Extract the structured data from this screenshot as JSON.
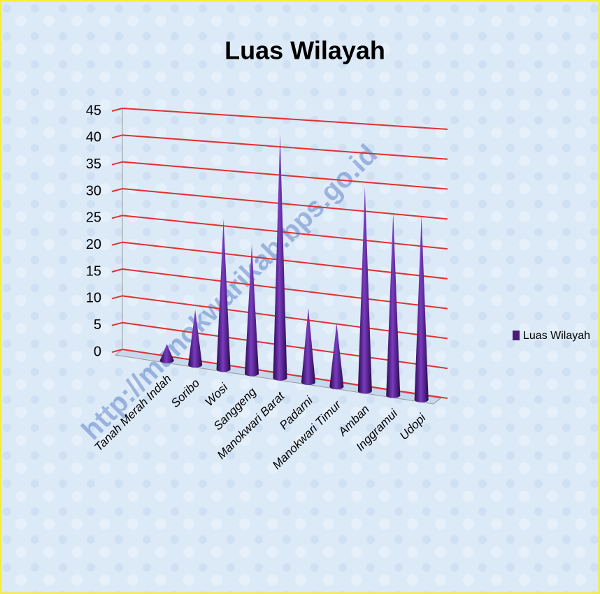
{
  "chart_data": {
    "type": "cone3d",
    "title": "Luas Wilayah",
    "categories": [
      "Tanah Merah Indah",
      "Soribo",
      "Wosi",
      "Sanggeng",
      "Manokwari Barat",
      "Padarni",
      "Manokwari Timur",
      "Amban",
      "Inggramui",
      "Udopi"
    ],
    "series": [
      {
        "name": "Luas Wilayah",
        "color": "#4b1a7a",
        "values": [
          3,
          10,
          27,
          23,
          43,
          13,
          11,
          35,
          31,
          31
        ]
      }
    ],
    "ylim": [
      0,
      45
    ],
    "yticks": [
      0,
      5,
      10,
      15,
      20,
      25,
      30,
      35,
      40,
      45
    ],
    "grid": true,
    "grid_color": "#e03030",
    "legend": "right"
  },
  "watermark": "http://manokwarikab.bps.go.id"
}
